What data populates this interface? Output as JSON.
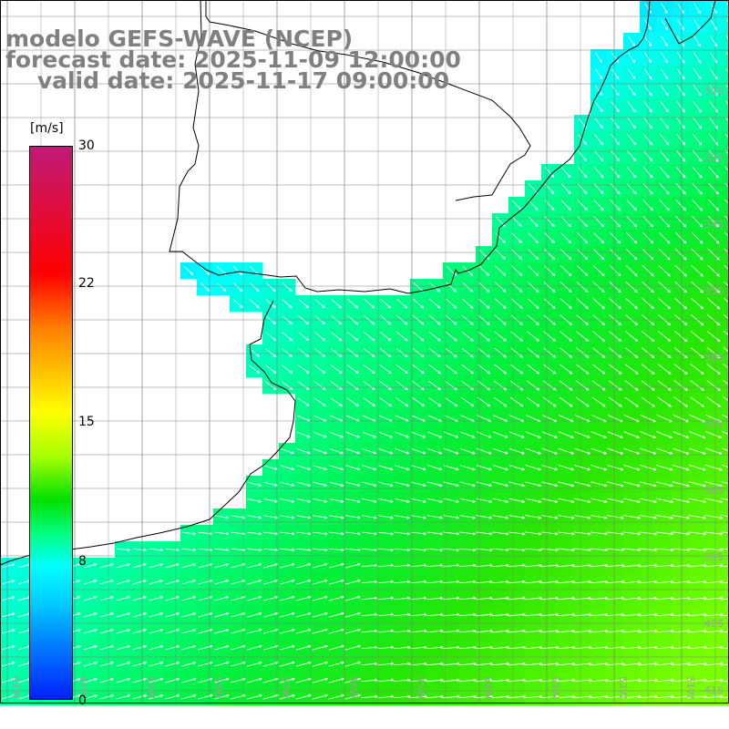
{
  "title": {
    "line1": "modelo GEFS-WAVE (NCEP)",
    "line2": "forecast date: 2025-11-09 12:00:00",
    "line3": "    valid date: 2025-11-17 09:00:00"
  },
  "colorbar": {
    "unit": "[m/s]",
    "ticks": [
      "30",
      "22",
      "15",
      "8",
      "0"
    ],
    "min": 0,
    "max": 30
  },
  "map": {
    "lat_labels": [
      "32S",
      "33S",
      "34S",
      "35S",
      "36S",
      "37S",
      "38S",
      "39S",
      "40S",
      "41S"
    ],
    "lon_labels": [
      "61W",
      "60W",
      "59W",
      "58W",
      "57W",
      "56W",
      "55W",
      "54W",
      "53W",
      "52W",
      "51W"
    ],
    "colors": {
      "land": "#ffffff",
      "grid": "#808080",
      "coast": "#000000",
      "arrows": "#ffffff",
      "labels": "#a0a0a0"
    }
  }
}
